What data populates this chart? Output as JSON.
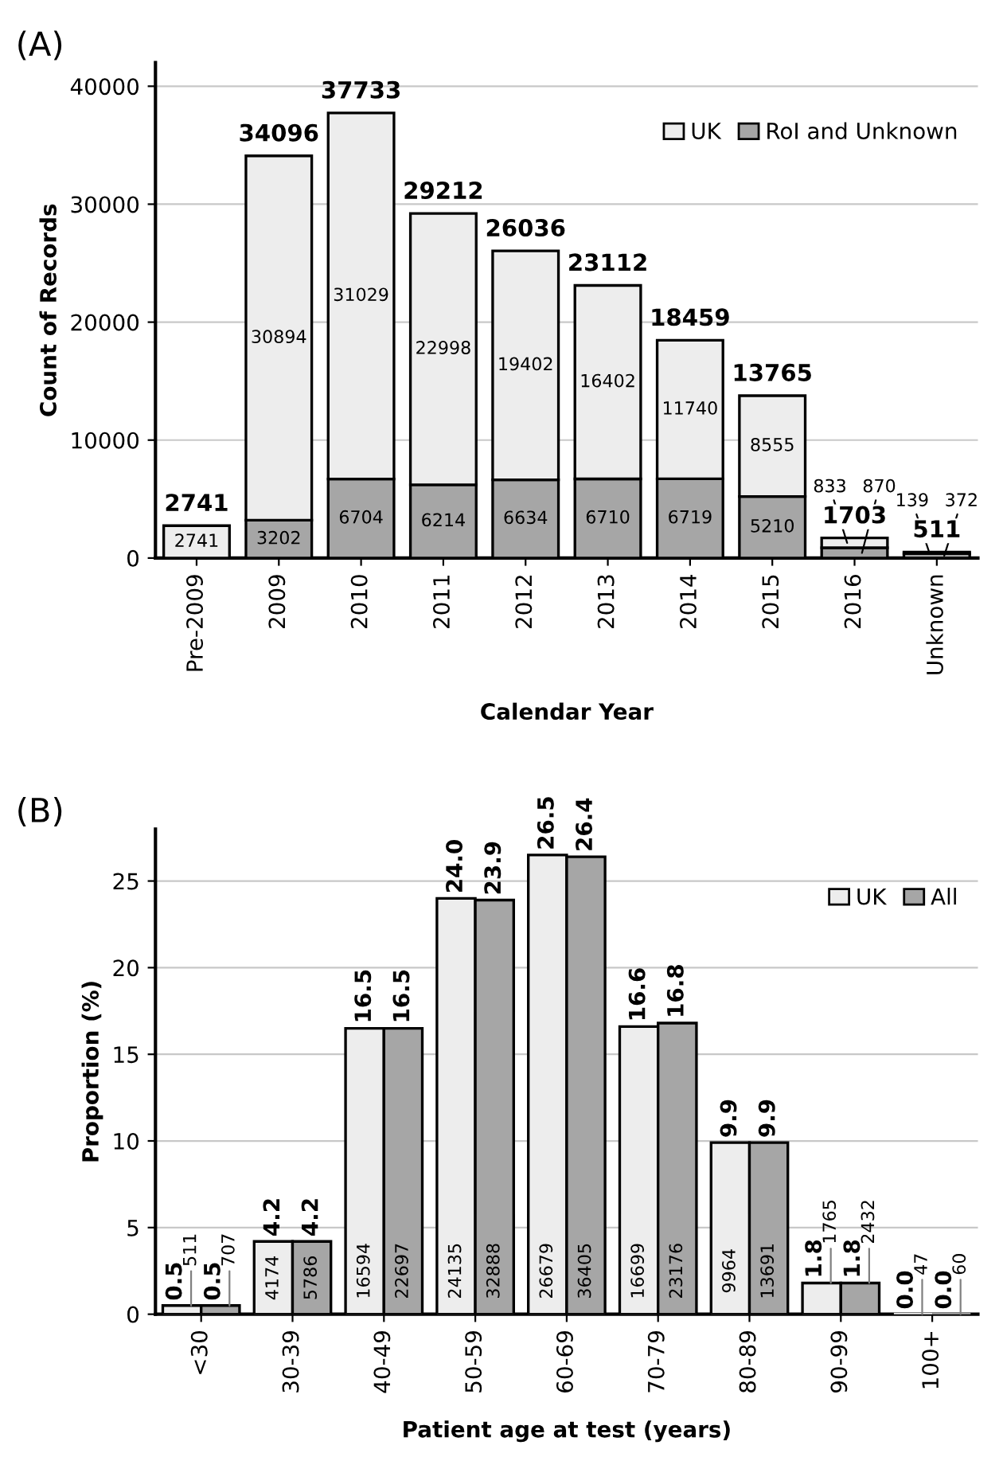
{
  "chart_data": [
    {
      "type": "bar",
      "title": "(A)",
      "xlabel": "Calendar Year",
      "ylabel": "Count of Records",
      "stacked": true,
      "categories": [
        "Pre-2009",
        "2009",
        "2010",
        "2011",
        "2012",
        "2013",
        "2014",
        "2015",
        "2016",
        "Unknown"
      ],
      "series": [
        {
          "name": "RoI and Unknown",
          "color": "#a6a6a6",
          "values": [
            0,
            3202,
            6704,
            6214,
            6634,
            6710,
            6719,
            5210,
            870,
            372
          ],
          "value_labels": [
            null,
            "3202",
            "6704",
            "6214",
            "6634",
            "6710",
            "6719",
            "5210",
            "870",
            "372"
          ]
        },
        {
          "name": "UK",
          "color": "#ededed",
          "values": [
            2741,
            30894,
            31029,
            22998,
            19402,
            16402,
            11740,
            8555,
            833,
            139
          ],
          "value_labels": [
            "2741",
            "30894",
            "31029",
            "22998",
            "19402",
            "16402",
            "11740",
            "8555",
            "833",
            "139"
          ]
        }
      ],
      "totals": [
        "2741",
        "34096",
        "37733",
        "29212",
        "26036",
        "23112",
        "18459",
        "13765",
        "1703",
        "511"
      ],
      "ylim": [
        0,
        42000
      ],
      "yticks": [
        0,
        10000,
        20000,
        30000,
        40000
      ],
      "grid": "y",
      "legend": "top right"
    },
    {
      "type": "bar",
      "title": "(B)",
      "xlabel": "Patient age at test (years)",
      "ylabel": "Proportion (%)",
      "categories": [
        "<30",
        "30-39",
        "40-49",
        "50-59",
        "60-69",
        "70-79",
        "80-89",
        "90-99",
        "100+"
      ],
      "series": [
        {
          "name": "UK",
          "color": "#ededed",
          "values": [
            0.5,
            4.2,
            16.5,
            24.0,
            26.5,
            16.6,
            9.9,
            1.8,
            0.0
          ],
          "value_labels": [
            "0.5",
            "4.2",
            "16.5",
            "24.0",
            "26.5",
            "16.6",
            "9.9",
            "1.8",
            "0.0"
          ]
        },
        {
          "name": "All",
          "color": "#a6a6a6",
          "values": [
            0.5,
            4.2,
            16.5,
            23.9,
            26.4,
            16.8,
            9.9,
            1.8,
            0.0
          ],
          "value_labels": [
            "0.5",
            "4.2",
            "16.5",
            "23.9",
            "26.4",
            "16.8",
            "9.9",
            "1.8",
            "0.0"
          ]
        }
      ],
      "annotations": [
        {
          "text": "511",
          "x": "<30",
          "y": 0.5
        },
        {
          "text": "4174",
          "x": "30-39",
          "y": 2.1
        },
        {
          "text": "16594",
          "x": "40-49",
          "y": 2.5
        },
        {
          "text": "24135",
          "x": "50-59",
          "y": 2.5
        },
        {
          "text": "26679",
          "x": "60-69",
          "y": 2.5
        },
        {
          "text": "16699",
          "x": "70-79",
          "y": 2.5
        },
        {
          "text": "9964",
          "x": "80-89",
          "y": 2.5
        },
        {
          "text": "1765",
          "x": "90-99",
          "y": 1.8
        },
        {
          "text": "47",
          "x": "100+",
          "y": 0.0
        },
        {
          "text": "707",
          "x": "<30",
          "y": 0.5
        },
        {
          "text": "5786",
          "x": "30-39",
          "y": 2.1
        },
        {
          "text": "22697",
          "x": "40-49",
          "y": 2.5
        },
        {
          "text": "32888",
          "x": "50-59",
          "y": 2.5
        },
        {
          "text": "36405",
          "x": "60-69",
          "y": 2.5
        },
        {
          "text": "23176",
          "x": "70-79",
          "y": 2.5
        },
        {
          "text": "13691",
          "x": "80-89",
          "y": 2.5
        },
        {
          "text": "2432",
          "x": "90-99",
          "y": 1.8
        },
        {
          "text": "60",
          "x": "100+",
          "y": 0.0
        }
      ],
      "ylim": [
        0,
        28
      ],
      "yticks": [
        0,
        5,
        10,
        15,
        20,
        25
      ],
      "grid": "y",
      "legend": "top right"
    }
  ]
}
